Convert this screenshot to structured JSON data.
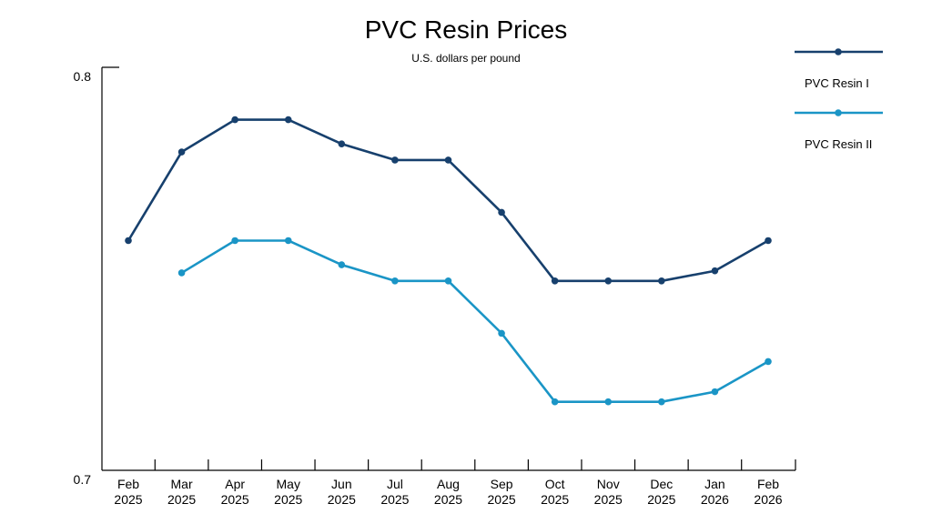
{
  "chart_data": {
    "type": "line",
    "title": "PVC Resin Prices",
    "subtitle": "U.S. dollars per pound",
    "xlabel": "",
    "ylabel": "",
    "categories": [
      [
        "Feb",
        "2025"
      ],
      [
        "Mar",
        "2025"
      ],
      [
        "Apr",
        "2025"
      ],
      [
        "May",
        "2025"
      ],
      [
        "Jun",
        "2025"
      ],
      [
        "Jul",
        "2025"
      ],
      [
        "Aug",
        "2025"
      ],
      [
        "Sep",
        "2025"
      ],
      [
        "Oct",
        "2025"
      ],
      [
        "Nov",
        "2025"
      ],
      [
        "Dec",
        "2025"
      ],
      [
        "Jan",
        "2026"
      ],
      [
        "Feb",
        "2026"
      ]
    ],
    "ylim": [
      0.7,
      0.8
    ],
    "yticks": [
      "0.7",
      "0.8"
    ],
    "grid": false,
    "legend_position": "top-right",
    "series": [
      {
        "name": "PVC Resin I",
        "color": "#17406d",
        "values": [
          0.757,
          0.779,
          0.787,
          0.787,
          0.781,
          0.777,
          0.777,
          0.764,
          0.747,
          0.747,
          0.747,
          0.7495,
          0.757
        ]
      },
      {
        "name": "PVC Resin II",
        "color": "#1a95c6",
        "values": [
          null,
          0.749,
          0.757,
          0.757,
          0.751,
          0.747,
          0.747,
          0.734,
          0.717,
          0.717,
          0.717,
          0.7195,
          0.727
        ]
      }
    ]
  }
}
